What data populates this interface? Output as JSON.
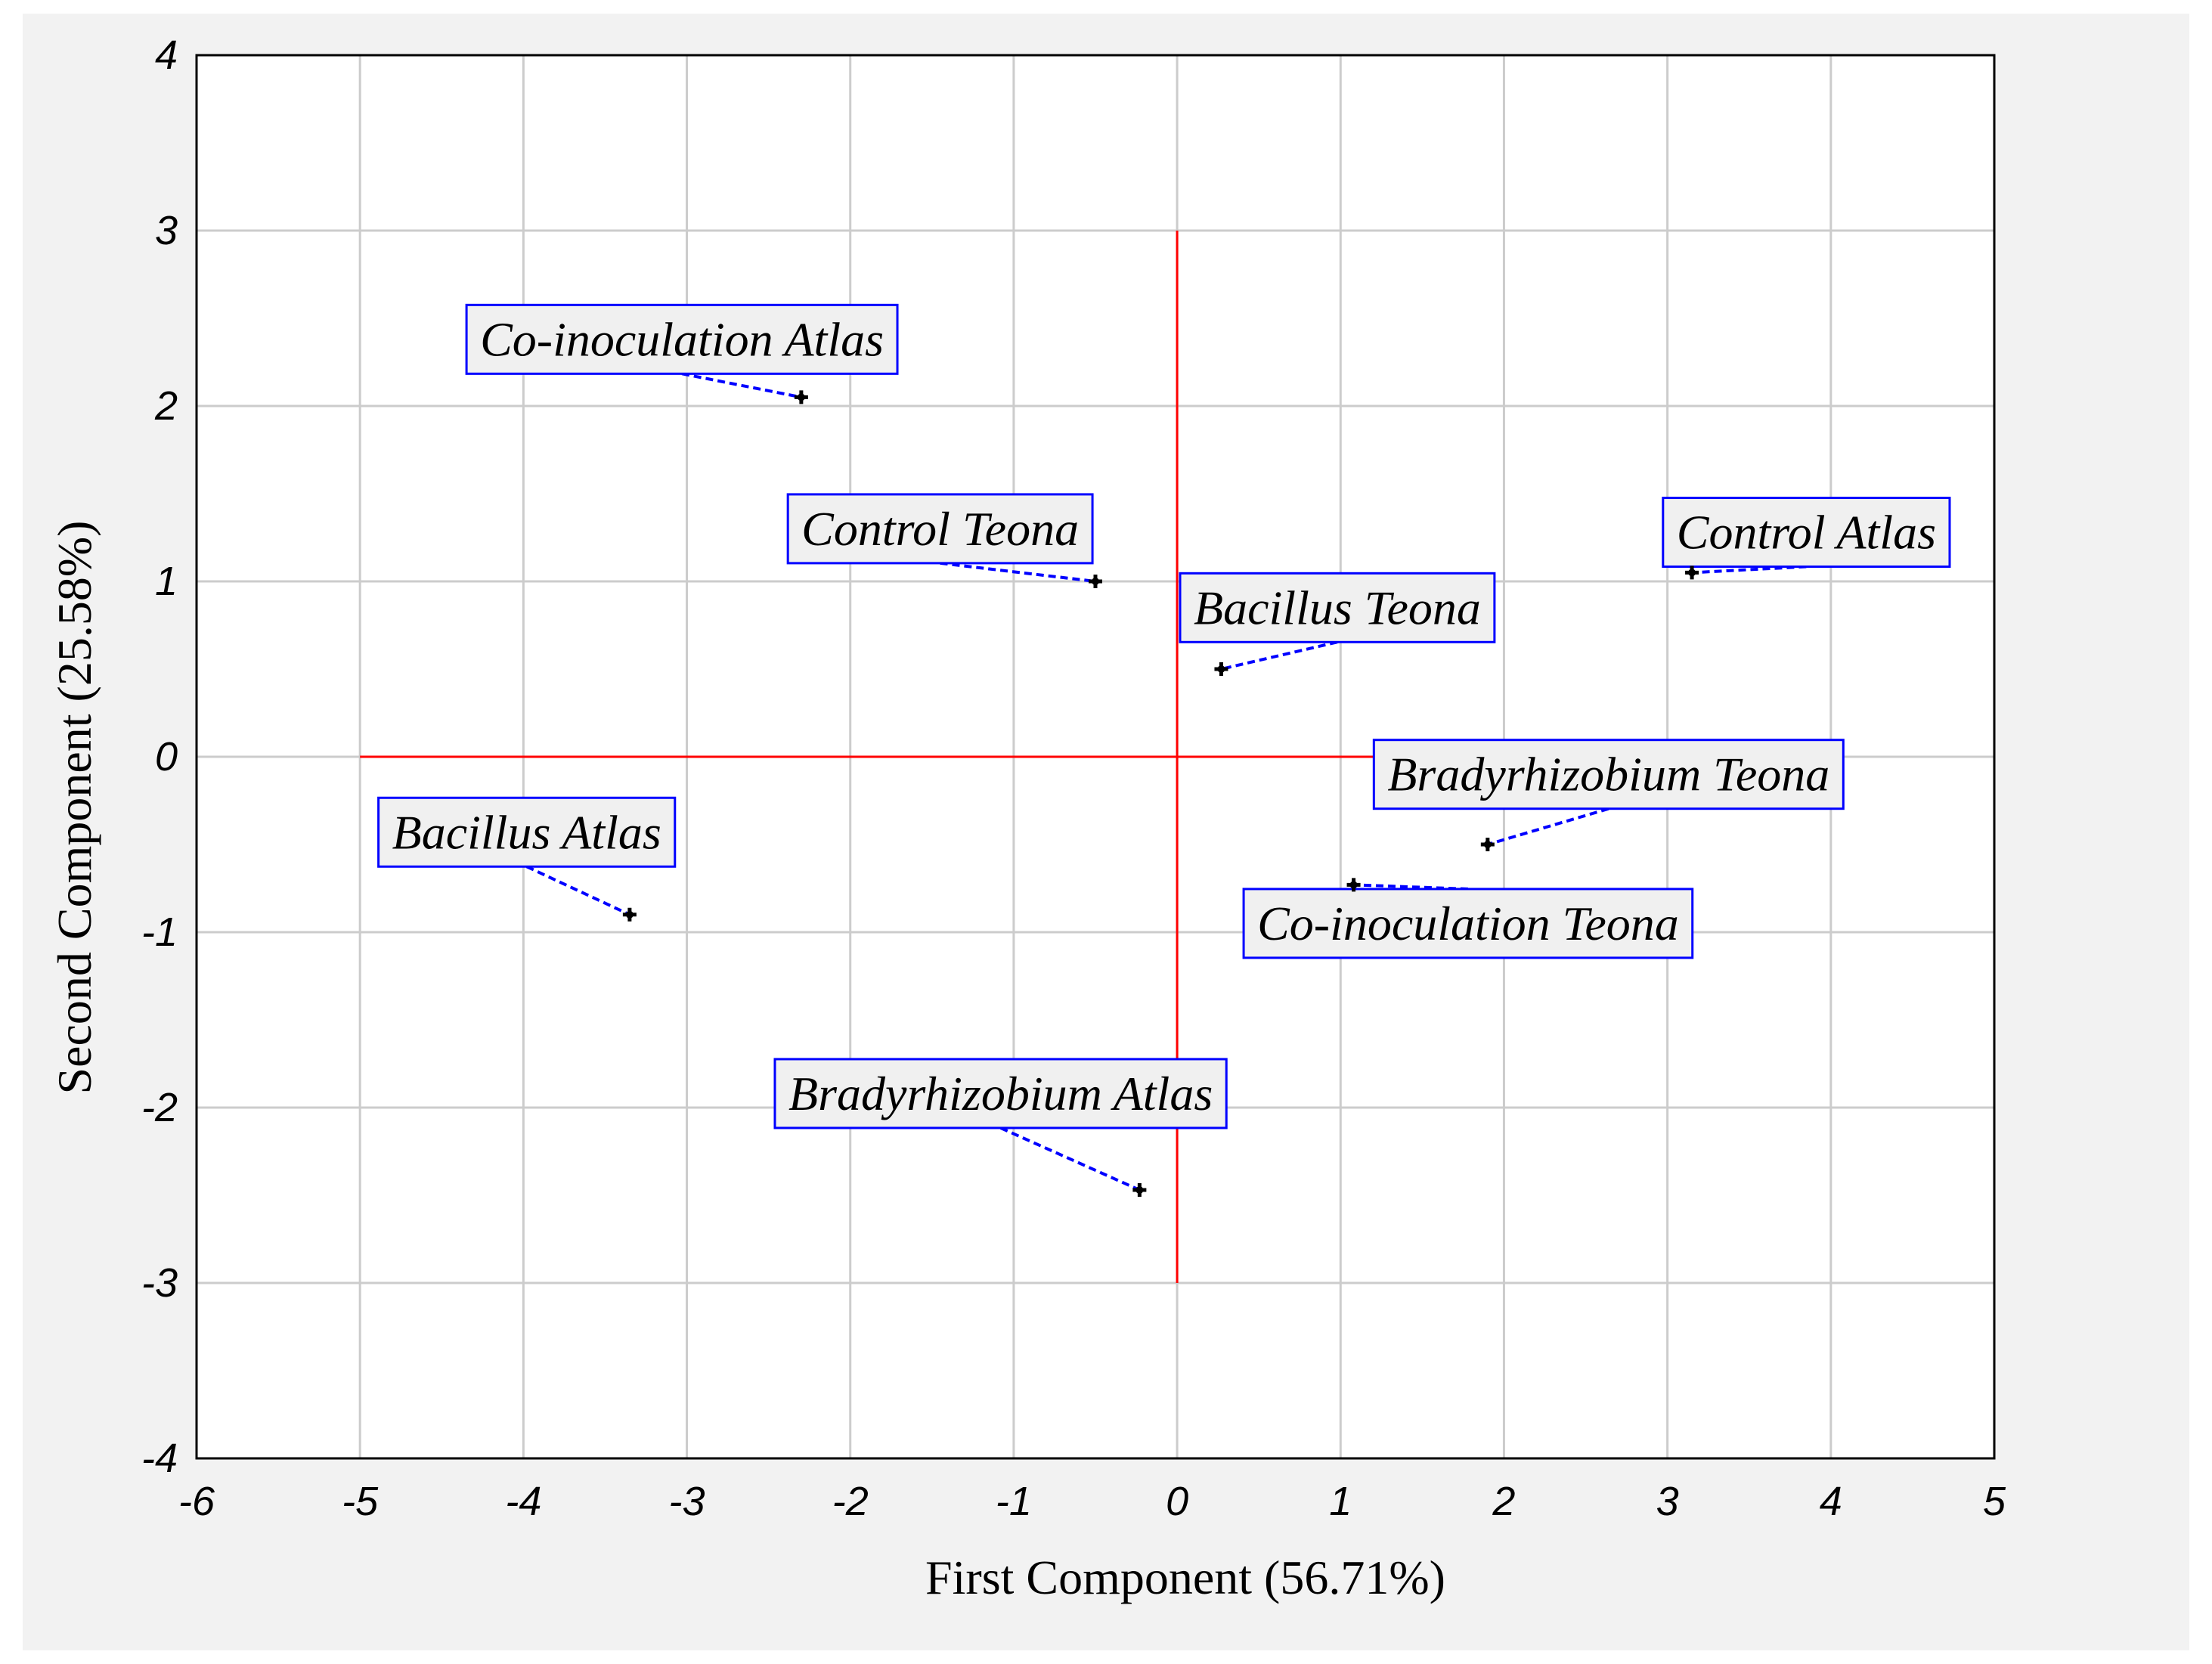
{
  "chart_data": {
    "type": "scatter",
    "xlabel": "First Component (56.71%)",
    "ylabel": "Second Component (25.58%)",
    "xlim": [
      -6,
      5
    ],
    "ylim": [
      -4,
      4
    ],
    "x_ticks": [
      -6,
      -5,
      -4,
      -3,
      -2,
      -1,
      0,
      1,
      2,
      3,
      4,
      5
    ],
    "y_ticks": [
      -4,
      -3,
      -2,
      -1,
      0,
      1,
      2,
      3,
      4
    ],
    "grid": true,
    "reference_lines": {
      "horizontal": {
        "y": 0,
        "x_from": -5,
        "x_to": 2
      },
      "vertical": {
        "x": 0,
        "y_from": -3,
        "y_to": 3
      },
      "color": "#ff0000"
    },
    "point_color": "#000000",
    "leader_color": "#0000ff",
    "label_border_color": "#0000ff",
    "points": [
      {
        "label": "Co-inoculation Atlas",
        "x": -2.3,
        "y": 2.05,
        "label_x": -3.03,
        "label_y": 2.38
      },
      {
        "label": "Control Teona",
        "x": -0.5,
        "y": 1.0,
        "label_x": -1.45,
        "label_y": 1.3
      },
      {
        "label": "Bacillus Teona",
        "x": 0.27,
        "y": 0.5,
        "label_x": 0.98,
        "label_y": 0.85
      },
      {
        "label": "Control Atlas",
        "x": 3.15,
        "y": 1.05,
        "label_x": 3.85,
        "label_y": 1.28
      },
      {
        "label": "Bradyrhizobium Teona",
        "x": 1.9,
        "y": -0.5,
        "label_x": 2.64,
        "label_y": -0.1
      },
      {
        "label": "Co-inoculation Teona",
        "x": 1.08,
        "y": -0.73,
        "label_x": 1.78,
        "label_y": -0.95
      },
      {
        "label": "Bacillus Atlas",
        "x": -3.35,
        "y": -0.9,
        "label_x": -3.98,
        "label_y": -0.43
      },
      {
        "label": "Bradyrhizobium Atlas",
        "x": -0.23,
        "y": -2.47,
        "label_x": -1.08,
        "label_y": -1.92
      }
    ]
  }
}
